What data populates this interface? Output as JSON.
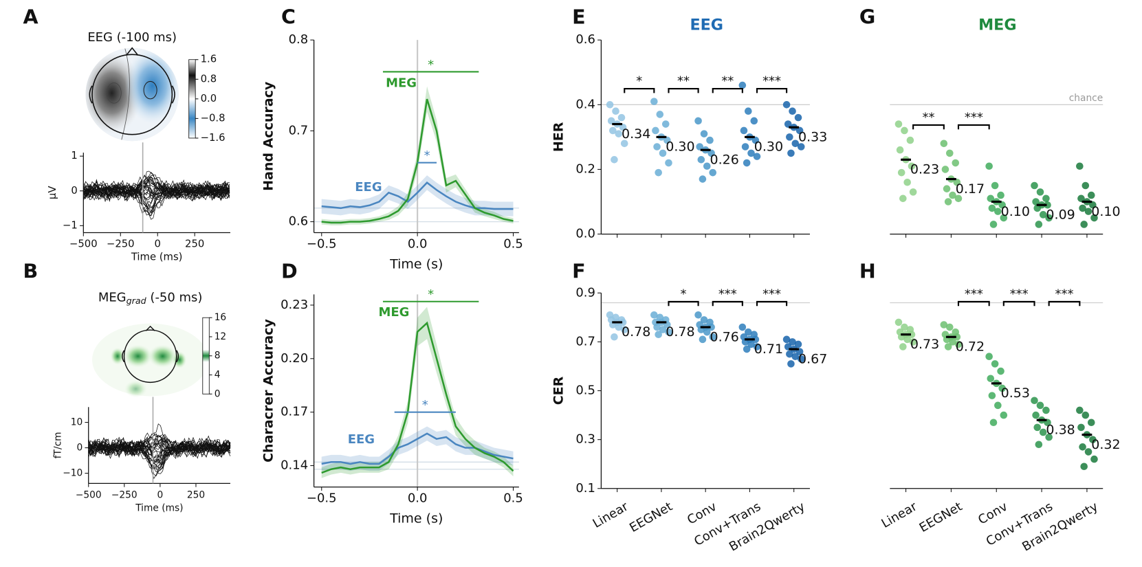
{
  "chart_data": [
    {
      "type": "butterfly",
      "panel": "A",
      "title": "EEG (-100 ms)",
      "xlabel": "Time (ms)",
      "ylabel": "µV",
      "xlim": [
        -500,
        490
      ],
      "xticks": [
        {
          "value": -500,
          "label": "−500"
        },
        {
          "value": -250,
          "label": "−250"
        },
        0,
        250
      ],
      "ylim": [
        -1.2,
        1.1
      ],
      "yticks": [
        1,
        0,
        {
          "value": -1,
          "label": "−1"
        }
      ],
      "marker_time": -100,
      "clim": [
        -1.6,
        1.6
      ],
      "cticks": [
        1.6,
        0.8,
        {
          "value": 0,
          "label": "0.0"
        },
        {
          "value": -0.8,
          "label": "−0.8"
        },
        {
          "value": -1.6,
          "label": "−1.6"
        }
      ]
    },
    {
      "type": "butterfly",
      "panel": "B",
      "title": "MEG",
      "title_sub": "grad",
      "title_suffix": " (-50 ms)",
      "xlabel": "Time (ms)",
      "ylabel": "fT/cm",
      "xlim": [
        -500,
        490
      ],
      "xticks": [
        {
          "value": -500,
          "label": "−500"
        },
        {
          "value": -250,
          "label": "−250"
        },
        0,
        250
      ],
      "ylim": [
        -14,
        16
      ],
      "yticks": [
        10,
        0,
        {
          "value": -10,
          "label": "−10"
        }
      ],
      "marker_time": -50,
      "clim": [
        0,
        16
      ],
      "cticks": [
        16,
        12,
        8,
        4,
        0
      ]
    },
    {
      "type": "line",
      "panel": "C",
      "xlabel": "Time (s)",
      "ylabel": "Hand Accuracy",
      "xlim": [
        -0.54,
        0.53
      ],
      "xticks": [
        {
          "value": -0.5,
          "label": "−0.5"
        },
        {
          "value": 0,
          "label": "0.0"
        },
        0.5
      ],
      "ylim": [
        0.588,
        0.8
      ],
      "yticks": [
        0.6,
        0.7,
        0.8
      ],
      "reference_lines": [
        0.615,
        0.6
      ],
      "vline": 0,
      "x": [
        -0.5,
        -0.45,
        -0.4,
        -0.35,
        -0.3,
        -0.25,
        -0.2,
        -0.15,
        -0.1,
        -0.05,
        0,
        0.05,
        0.1,
        0.15,
        0.2,
        0.25,
        0.3,
        0.35,
        0.4,
        0.45,
        0.5
      ],
      "series": [
        {
          "name": "EEG",
          "color": "#4a86c0",
          "values": [
            0.617,
            0.616,
            0.615,
            0.617,
            0.616,
            0.618,
            0.622,
            0.632,
            0.628,
            0.622,
            0.632,
            0.643,
            0.635,
            0.628,
            0.622,
            0.618,
            0.615,
            0.615,
            0.614,
            0.614,
            0.614
          ],
          "ci": [
            0.008,
            0.008,
            0.008,
            0.008,
            0.008,
            0.008,
            0.008,
            0.008,
            0.008,
            0.008,
            0.008,
            0.008,
            0.008,
            0.008,
            0.008,
            0.008,
            0.008,
            0.008,
            0.008,
            0.008,
            0.008
          ]
        },
        {
          "name": "MEG",
          "color": "#2e9a2e",
          "values": [
            0.6,
            0.599,
            0.599,
            0.6,
            0.6,
            0.601,
            0.603,
            0.606,
            0.612,
            0.625,
            0.665,
            0.735,
            0.7,
            0.64,
            0.645,
            0.63,
            0.615,
            0.61,
            0.607,
            0.603,
            0.601
          ],
          "ci": [
            0.003,
            0.003,
            0.003,
            0.003,
            0.003,
            0.003,
            0.003,
            0.004,
            0.005,
            0.007,
            0.01,
            0.014,
            0.012,
            0.008,
            0.007,
            0.006,
            0.005,
            0.004,
            0.004,
            0.003,
            0.003
          ]
        }
      ],
      "significance": [
        {
          "label": "*",
          "series": 1,
          "x": [
            -0.18,
            0.32
          ],
          "y": 0.765
        },
        {
          "label": "*",
          "series": 0,
          "x": [
            0,
            0.1
          ],
          "y": 0.665
        }
      ]
    },
    {
      "type": "line",
      "panel": "D",
      "xlabel": "Time (s)",
      "ylabel": "Characrer Accuracy",
      "xlim": [
        -0.54,
        0.53
      ],
      "xticks": [
        {
          "value": -0.5,
          "label": "−0.5"
        },
        {
          "value": 0,
          "label": "0.0"
        },
        0.5
      ],
      "ylim": [
        0.128,
        0.236
      ],
      "yticks": [
        0.14,
        0.17,
        {
          "value": 0.2,
          "label": "0.20"
        },
        0.23
      ],
      "reference_lines": [
        0.142,
        0.138
      ],
      "vline": 0,
      "x": [
        -0.5,
        -0.45,
        -0.4,
        -0.35,
        -0.3,
        -0.25,
        -0.2,
        -0.15,
        -0.1,
        -0.05,
        0,
        0.05,
        0.1,
        0.15,
        0.2,
        0.25,
        0.3,
        0.35,
        0.4,
        0.45,
        0.5
      ],
      "series": [
        {
          "name": "EEG",
          "color": "#4a86c0",
          "values": [
            0.141,
            0.142,
            0.142,
            0.141,
            0.142,
            0.141,
            0.141,
            0.145,
            0.15,
            0.152,
            0.155,
            0.158,
            0.155,
            0.156,
            0.152,
            0.15,
            0.15,
            0.148,
            0.146,
            0.145,
            0.144
          ],
          "ci": [
            0.004,
            0.004,
            0.004,
            0.004,
            0.004,
            0.004,
            0.004,
            0.004,
            0.004,
            0.004,
            0.004,
            0.004,
            0.004,
            0.004,
            0.004,
            0.004,
            0.004,
            0.004,
            0.004,
            0.004,
            0.004
          ]
        },
        {
          "name": "MEG",
          "color": "#2e9a2e",
          "values": [
            0.136,
            0.138,
            0.139,
            0.138,
            0.139,
            0.139,
            0.139,
            0.142,
            0.152,
            0.17,
            0.215,
            0.22,
            0.2,
            0.18,
            0.162,
            0.155,
            0.15,
            0.147,
            0.145,
            0.142,
            0.137
          ],
          "ci": [
            0.003,
            0.003,
            0.003,
            0.003,
            0.003,
            0.003,
            0.003,
            0.004,
            0.005,
            0.006,
            0.008,
            0.009,
            0.008,
            0.006,
            0.005,
            0.004,
            0.004,
            0.003,
            0.003,
            0.003,
            0.003
          ]
        }
      ],
      "significance": [
        {
          "label": "*",
          "series": 1,
          "x": [
            -0.18,
            0.32
          ],
          "y": 0.232
        },
        {
          "label": "*",
          "series": 0,
          "x": [
            -0.12,
            0.2
          ],
          "y": 0.17
        }
      ]
    },
    {
      "type": "strip",
      "panel": "E",
      "title": "EEG",
      "title_color": "#1f6bb3",
      "ylabel": "HER",
      "ylim": [
        0,
        0.6
      ],
      "yticks": [
        {
          "value": 0,
          "label": "0.0"
        },
        0.2,
        0.4,
        0.6
      ],
      "reference_line": 0.4,
      "colors": [
        "#93c4e3",
        "#6aaed6",
        "#4a98c9",
        "#2e7ebc",
        "#1764ab"
      ],
      "values": [
        0.34,
        0.3,
        0.26,
        0.3,
        0.33
      ],
      "value_labels": [
        "0.34",
        "0.30",
        "0.26",
        "0.30",
        "0.33"
      ],
      "points": [
        [
          0.4,
          0.38,
          0.36,
          0.35,
          0.34,
          0.33,
          0.32,
          0.31,
          0.28,
          0.23
        ],
        [
          0.41,
          0.37,
          0.34,
          0.32,
          0.3,
          0.29,
          0.27,
          0.25,
          0.22,
          0.19
        ],
        [
          0.35,
          0.31,
          0.29,
          0.27,
          0.26,
          0.25,
          0.23,
          0.21,
          0.19,
          0.17
        ],
        [
          0.46,
          0.38,
          0.35,
          0.32,
          0.3,
          0.29,
          0.27,
          0.25,
          0.24,
          0.22
        ],
        [
          0.4,
          0.38,
          0.36,
          0.34,
          0.33,
          0.32,
          0.3,
          0.28,
          0.27,
          0.25
        ]
      ],
      "significance": [
        "*",
        "**",
        "**",
        "***"
      ]
    },
    {
      "type": "strip",
      "panel": "F",
      "ylabel": "CER",
      "categories": [
        "Linear",
        "EEGNet",
        "Conv",
        "Conv+Trans",
        "Brain2Qwerty"
      ],
      "ylim": [
        0.1,
        0.9
      ],
      "yticks": [
        0.1,
        0.3,
        0.5,
        0.7,
        0.9
      ],
      "reference_line": 0.86,
      "colors": [
        "#93c4e3",
        "#6aaed6",
        "#4a98c9",
        "#2e7ebc",
        "#1764ab"
      ],
      "values": [
        0.78,
        0.78,
        0.76,
        0.71,
        0.67
      ],
      "value_labels": [
        "0.78",
        "0.78",
        "0.76",
        "0.71",
        "0.67"
      ],
      "points": [
        [
          0.81,
          0.8,
          0.79,
          0.79,
          0.78,
          0.78,
          0.77,
          0.76,
          0.75,
          0.72
        ],
        [
          0.81,
          0.8,
          0.79,
          0.78,
          0.78,
          0.77,
          0.76,
          0.75,
          0.74,
          0.73
        ],
        [
          0.81,
          0.79,
          0.78,
          0.77,
          0.76,
          0.76,
          0.75,
          0.74,
          0.72,
          0.71
        ],
        [
          0.76,
          0.74,
          0.73,
          0.72,
          0.71,
          0.71,
          0.7,
          0.69,
          0.68,
          0.67
        ],
        [
          0.71,
          0.7,
          0.69,
          0.68,
          0.67,
          0.66,
          0.65,
          0.64,
          0.63,
          0.61
        ]
      ],
      "significance": [
        null,
        "*",
        "***",
        "***"
      ]
    },
    {
      "type": "strip",
      "panel": "G",
      "title": "MEG",
      "title_color": "#1f8a3e",
      "ylim": [
        0,
        0.6
      ],
      "reference_line": 0.4,
      "reference_label": "chance",
      "colors": [
        "#8fd18a",
        "#6cc070",
        "#41ab5d",
        "#2b944c",
        "#1a7a3c"
      ],
      "values": [
        0.23,
        0.17,
        0.1,
        0.09,
        0.1
      ],
      "value_labels": [
        "0.23",
        "0.17",
        "0.10",
        "0.09",
        "0.10"
      ],
      "points": [
        [
          0.34,
          0.32,
          0.29,
          0.26,
          0.23,
          0.21,
          0.19,
          0.16,
          0.13,
          0.11
        ],
        [
          0.28,
          0.25,
          0.22,
          0.2,
          0.17,
          0.16,
          0.14,
          0.12,
          0.11,
          0.1
        ],
        [
          0.21,
          0.15,
          0.12,
          0.11,
          0.1,
          0.09,
          0.08,
          0.07,
          0.05,
          0.03
        ],
        [
          0.15,
          0.13,
          0.11,
          0.1,
          0.09,
          0.09,
          0.08,
          0.06,
          0.05,
          0.03
        ],
        [
          0.21,
          0.15,
          0.12,
          0.11,
          0.1,
          0.09,
          0.08,
          0.07,
          0.05,
          0.03
        ]
      ],
      "significance": [
        "**",
        "***",
        null,
        null
      ]
    },
    {
      "type": "strip",
      "panel": "H",
      "categories": [
        "Linear",
        "EEGNet",
        "Conv",
        "Conv+Trans",
        "Brain2Qwerty"
      ],
      "ylim": [
        0.1,
        0.9
      ],
      "reference_line": 0.86,
      "colors": [
        "#8fd18a",
        "#6cc070",
        "#41ab5d",
        "#2b944c",
        "#1a7a3c"
      ],
      "values": [
        0.73,
        0.72,
        0.53,
        0.38,
        0.32
      ],
      "value_labels": [
        "0.73",
        "0.72",
        "0.53",
        "0.38",
        "0.32"
      ],
      "points": [
        [
          0.78,
          0.76,
          0.75,
          0.74,
          0.73,
          0.73,
          0.72,
          0.71,
          0.7,
          0.68
        ],
        [
          0.77,
          0.76,
          0.74,
          0.73,
          0.72,
          0.72,
          0.71,
          0.7,
          0.69,
          0.68
        ],
        [
          0.64,
          0.61,
          0.58,
          0.55,
          0.53,
          0.51,
          0.48,
          0.44,
          0.4,
          0.37
        ],
        [
          0.46,
          0.44,
          0.42,
          0.4,
          0.38,
          0.37,
          0.35,
          0.33,
          0.31,
          0.28
        ],
        [
          0.42,
          0.4,
          0.37,
          0.35,
          0.32,
          0.3,
          0.27,
          0.25,
          0.22,
          0.19
        ]
      ],
      "significance": [
        null,
        "***",
        "***",
        "***"
      ]
    }
  ]
}
